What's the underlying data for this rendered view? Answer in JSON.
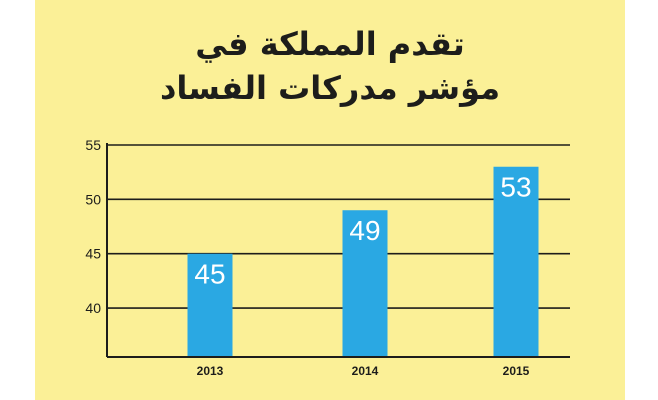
{
  "title_lines": [
    "تقدم المملكة في",
    "مؤشر مدركات الفساد"
  ],
  "colors": {
    "background": "#fbf097",
    "bar": "#2aa8e3",
    "axis": "#1d1d1b",
    "label_in_bar": "#ffffff"
  },
  "chart_data": {
    "type": "bar",
    "title": "تقدم المملكة في مؤشر مدركات الفساد",
    "categories": [
      "2013",
      "2014",
      "2015"
    ],
    "values": [
      45,
      49,
      53
    ],
    "yticks": [
      40,
      45,
      50,
      55
    ],
    "ylim": [
      35.5,
      55
    ],
    "grid": true,
    "xlabel": "",
    "ylabel": ""
  }
}
